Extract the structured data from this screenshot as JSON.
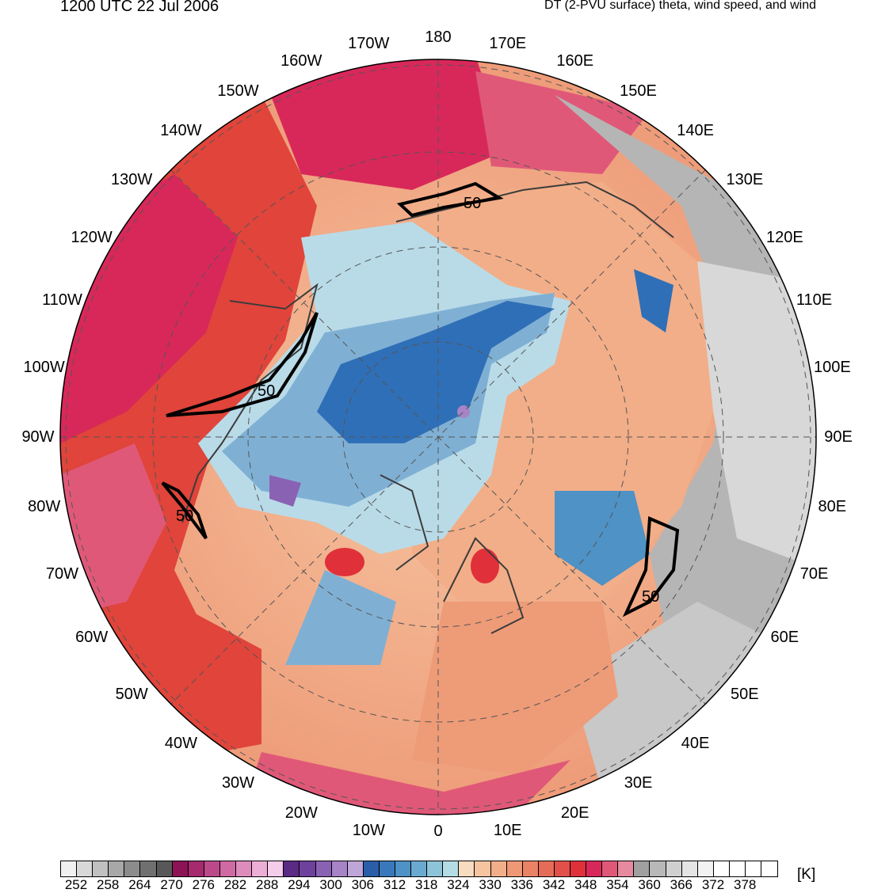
{
  "header": {
    "valid_time": "1200 UTC 22 Jul 2006",
    "product": "DT (2-PVU surface) theta, wind speed, and wind"
  },
  "map": {
    "projection": "north polar stereographic",
    "longitude_labels": [
      "180",
      "170E",
      "160E",
      "150E",
      "140E",
      "130E",
      "120E",
      "110E",
      "100E",
      "90E",
      "80E",
      "70E",
      "60E",
      "50E",
      "40E",
      "30E",
      "20E",
      "10E",
      "0",
      "10W",
      "20W",
      "30W",
      "40W",
      "50W",
      "60W",
      "70W",
      "80W",
      "90W",
      "100W",
      "110W",
      "120W",
      "130W",
      "140W",
      "150W",
      "160W",
      "170W"
    ],
    "contour_label": "50",
    "contour_label_count": 4,
    "colors": {
      "cold_core": "#2f6fb7",
      "mid_blue": "#7fb0d4",
      "light_blue": "#b9dbe8",
      "peach": "#f6c4a0",
      "salmon": "#ee9b78",
      "red": "#e0443a",
      "pink": "#e0578c",
      "gray": "#b5b5b5"
    }
  },
  "colorbar": {
    "unit": "[K]",
    "tick_labels": [
      "252",
      "258",
      "264",
      "270",
      "276",
      "282",
      "288",
      "294",
      "300",
      "306",
      "312",
      "318",
      "324",
      "330",
      "336",
      "342",
      "348",
      "354",
      "360",
      "366",
      "372",
      "378"
    ],
    "colors": [
      "#f0f0f0",
      "#d8d8d8",
      "#c0c0c0",
      "#a8a8a8",
      "#8c8c8c",
      "#707070",
      "#585858",
      "#8c1456",
      "#a52a6e",
      "#bc4a8a",
      "#cf6aa2",
      "#de8cbc",
      "#ecaed6",
      "#f6cceb",
      "#5a2a84",
      "#6e429c",
      "#8a62b4",
      "#a684c6",
      "#bea6d8",
      "#2a5ea8",
      "#3a78bc",
      "#4e92c6",
      "#6aaad0",
      "#8ec4d8",
      "#b4dce4",
      "#f8dcc0",
      "#f6c4a0",
      "#f2ae88",
      "#ee9876",
      "#ea8266",
      "#e66c58",
      "#e2504a",
      "#e0303a",
      "#d8285a",
      "#e05878",
      "#e68aa0",
      "#a0a0a0",
      "#b8b8b8",
      "#d0d0d0",
      "#e4e4e4",
      "#f2f2f2",
      "#ffffff",
      "#ffffff",
      "#ffffff",
      "#ffffff"
    ]
  }
}
